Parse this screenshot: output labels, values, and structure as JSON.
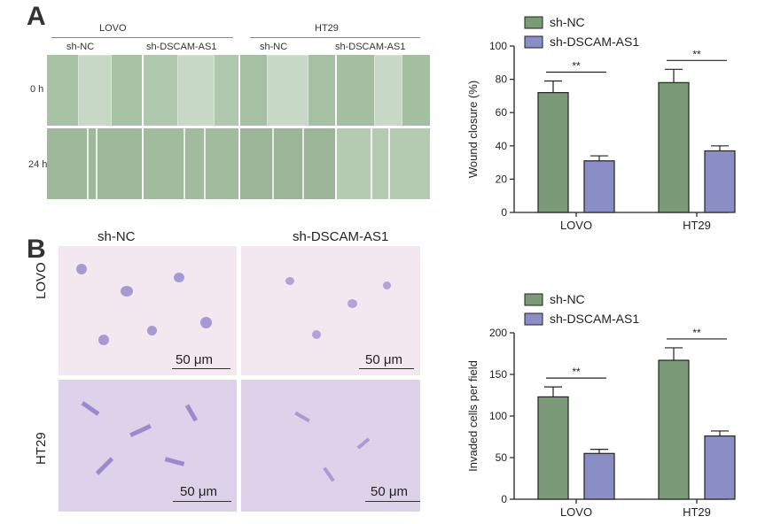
{
  "panel_a": {
    "label": "A",
    "cell_lines": [
      "LOVO",
      "HT29"
    ],
    "groups": [
      "sh-NC",
      "sh-DSCAM-AS1"
    ],
    "timepoints": [
      "0 h",
      "24 h"
    ]
  },
  "panel_b": {
    "label": "B",
    "groups": [
      "sh-NC",
      "sh-DSCAM-AS1"
    ],
    "cell_lines": [
      "LOVO",
      "HT29"
    ],
    "scale_bar": "50 μm"
  },
  "colors": {
    "sh_nc": "#7b9a77",
    "sh_dscam": "#8b8dc5",
    "axis": "#222222"
  },
  "chart_data": [
    {
      "type": "bar",
      "categories": [
        "LOVO",
        "HT29"
      ],
      "series": [
        {
          "name": "sh-NC",
          "values": [
            72,
            78
          ],
          "errors": [
            7,
            8
          ]
        },
        {
          "name": "sh-DSCAM-AS1",
          "values": [
            31,
            37
          ],
          "errors": [
            3,
            3
          ]
        }
      ],
      "ylabel": "Wound closure (%)",
      "ylim": [
        0,
        100
      ],
      "yticks": [
        "0",
        "20",
        "40",
        "60",
        "80",
        "100"
      ],
      "significance": [
        "**",
        "**"
      ],
      "legend": "top-left"
    },
    {
      "type": "bar",
      "categories": [
        "LOVO",
        "HT29"
      ],
      "series": [
        {
          "name": "sh-NC",
          "values": [
            123,
            167
          ],
          "errors": [
            12,
            15
          ]
        },
        {
          "name": "sh-DSCAM-AS1",
          "values": [
            55,
            76
          ],
          "errors": [
            5,
            6
          ]
        }
      ],
      "ylabel": "Invaded cells per field",
      "ylim": [
        0,
        200
      ],
      "yticks": [
        "0",
        "50",
        "100",
        "150",
        "200"
      ],
      "significance": [
        "**",
        "**"
      ],
      "legend": "top-left"
    }
  ]
}
